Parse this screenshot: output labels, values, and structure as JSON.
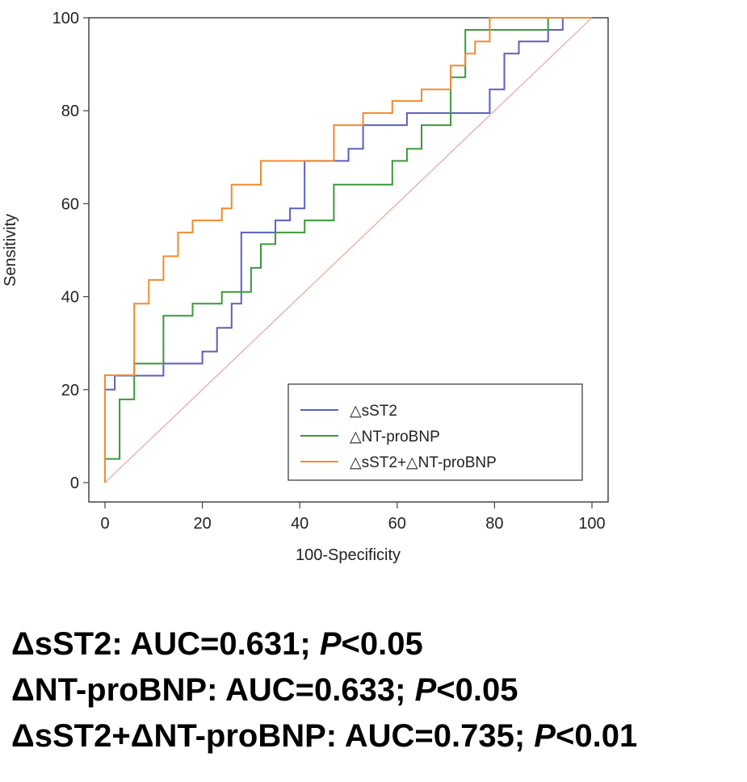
{
  "chart_data": {
    "type": "line",
    "xlabel": "100-Specificity",
    "ylabel": "Sensitivity",
    "xlim": [
      0,
      100
    ],
    "ylim": [
      0,
      100
    ],
    "xticks": [
      0,
      20,
      40,
      60,
      80,
      100
    ],
    "yticks": [
      0,
      20,
      40,
      60,
      80,
      100
    ],
    "legend_position": "bottom-right",
    "reference_line": {
      "x": [
        0,
        100
      ],
      "y": [
        0,
        100
      ],
      "color": "#e8b4b4"
    },
    "series": [
      {
        "name": "△sST2",
        "color": "#5b5fbf",
        "x": [
          0,
          0,
          2,
          2,
          12,
          12,
          20,
          20,
          23,
          23,
          26,
          26,
          28,
          28,
          30,
          30,
          35,
          35,
          38,
          38,
          41,
          41,
          47,
          47,
          50,
          50,
          53,
          53,
          59,
          59,
          62,
          62,
          65,
          65,
          79,
          79,
          82,
          82,
          85,
          85,
          88,
          88,
          91,
          91,
          94,
          94,
          100
        ],
        "y": [
          0,
          20,
          20,
          23,
          23,
          25.6,
          25.6,
          28.2,
          28.2,
          33.3,
          33.3,
          38.5,
          38.5,
          53.8,
          53.8,
          53.8,
          53.8,
          56.4,
          56.4,
          59,
          59,
          69.2,
          69.2,
          69.2,
          69.2,
          71.8,
          71.8,
          76.9,
          76.9,
          76.9,
          76.9,
          79.5,
          79.5,
          79.5,
          79.5,
          84.6,
          84.6,
          92.3,
          92.3,
          94.9,
          94.9,
          94.9,
          94.9,
          97.4,
          97.4,
          100,
          100
        ]
      },
      {
        "name": "△NT-proBNP",
        "color": "#3a9a3a",
        "x": [
          0,
          0,
          3,
          3,
          6,
          6,
          12,
          12,
          18,
          18,
          24,
          24,
          30,
          30,
          32,
          32,
          35,
          35,
          41,
          41,
          47,
          47,
          59,
          59,
          62,
          62,
          65,
          65,
          71,
          71,
          74,
          74,
          80,
          80,
          91,
          91,
          100
        ],
        "y": [
          0,
          5.1,
          5.1,
          17.9,
          17.9,
          25.6,
          25.6,
          35.9,
          35.9,
          38.5,
          38.5,
          41,
          41,
          46.2,
          46.2,
          51.3,
          51.3,
          53.8,
          53.8,
          56.4,
          56.4,
          64.1,
          64.1,
          69.2,
          69.2,
          71.8,
          71.8,
          76.9,
          76.9,
          87.2,
          87.2,
          97.4,
          97.4,
          97.4,
          97.4,
          100,
          100
        ]
      },
      {
        "name": "△sST2+△NT-proBNP",
        "color": "#f28a2e",
        "x": [
          0,
          0,
          6,
          6,
          9,
          9,
          12,
          12,
          15,
          15,
          18,
          18,
          21,
          21,
          24,
          24,
          26,
          26,
          29,
          29,
          32,
          32,
          35,
          35,
          47,
          47,
          50,
          50,
          53,
          53,
          56,
          56,
          59,
          59,
          65,
          65,
          68,
          68,
          71,
          71,
          74,
          74,
          76,
          76,
          79,
          79,
          100
        ],
        "y": [
          0,
          23.1,
          23.1,
          38.5,
          38.5,
          43.6,
          43.6,
          48.7,
          48.7,
          53.8,
          53.8,
          56.4,
          56.4,
          56.4,
          56.4,
          59,
          59,
          64.1,
          64.1,
          64.1,
          64.1,
          69.2,
          69.2,
          69.2,
          69.2,
          76.9,
          76.9,
          76.9,
          76.9,
          79.5,
          79.5,
          79.5,
          79.5,
          82.1,
          82.1,
          84.6,
          84.6,
          84.6,
          84.6,
          89.7,
          89.7,
          92.3,
          92.3,
          94.9,
          94.9,
          100,
          100
        ]
      }
    ]
  },
  "stats": [
    {
      "label": "ΔsST2: AUC=0.631; ",
      "p": "P",
      "rest": "<0.05"
    },
    {
      "label": "ΔNT-proBNP: AUC=0.633; ",
      "p": "P",
      "rest": "<0.05"
    },
    {
      "label": "ΔsST2+ΔNT-proBNP: AUC=0.735; ",
      "p": "P",
      "rest": "<0.01"
    }
  ]
}
